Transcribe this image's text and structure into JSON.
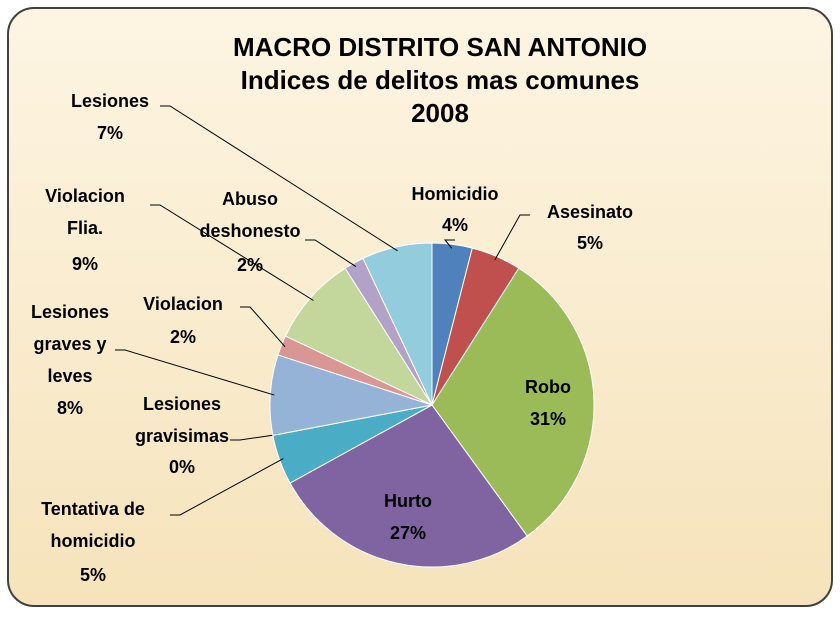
{
  "chart_data": {
    "type": "pie",
    "title": [
      "MACRO DISTRITO SAN ANTONIO",
      "Indices de delitos mas comunes",
      "2008"
    ],
    "categories": [
      "Homicidio",
      "Asesinato",
      "Robo",
      "Hurto",
      "Tentativa de homicidio",
      "Lesiones gravisimas",
      "Lesiones graves y leves",
      "Violacion",
      "Violacion Flia.",
      "Abuso deshonesto",
      "Lesiones"
    ],
    "values": [
      4,
      5,
      31,
      27,
      5,
      0,
      8,
      2,
      9,
      2,
      7
    ],
    "value_labels": [
      "4%",
      "5%",
      "31%",
      "27%",
      "5%",
      "0%",
      "8%",
      "2%",
      "9%",
      "2%",
      "7%"
    ],
    "colors": [
      "#4f81bd",
      "#c0504d",
      "#9bbb59",
      "#8064a2",
      "#4bacc6",
      "#f79646",
      "#95b3d7",
      "#d99694",
      "#c3d69b",
      "#b3a2c7",
      "#93cddd"
    ]
  }
}
